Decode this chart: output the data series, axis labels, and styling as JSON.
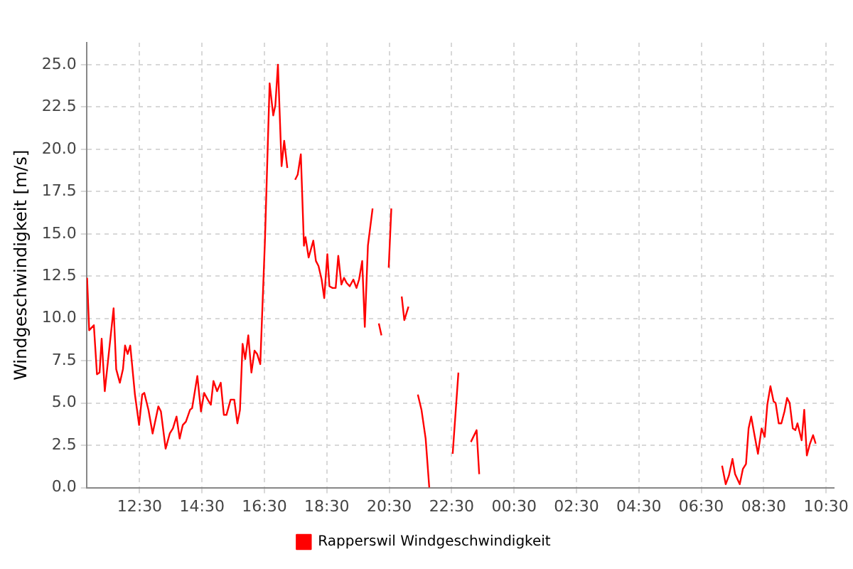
{
  "chart_data": {
    "type": "line",
    "ylabel": "Windgeschwindigkeit [m/s]",
    "x": [
      "--01-01T10:49",
      "--01-01T10:53",
      "--01-01T11:02",
      "--01-01T11:08",
      "--01-01T11:13",
      "--01-01T11:17",
      "--01-01T11:23",
      "--01-01T11:40",
      "--01-01T11:45",
      "--01-01T11:52",
      "--01-01T11:58",
      "--01-01T12:02",
      "--01-01T12:07",
      "--01-01T12:12",
      "--01-01T12:21",
      "--01-01T12:29",
      "--01-01T12:35",
      "--01-01T12:39",
      "--01-01T12:47",
      "--01-01T12:55",
      "--01-01T13:06",
      "--01-01T13:11",
      "--01-01T13:20",
      "--01-01T13:28",
      "--01-01T13:34",
      "--01-01T13:41",
      "--01-01T13:47",
      "--01-01T13:53",
      "--01-01T13:59",
      "--01-01T14:07",
      "--01-01T14:11",
      "--01-01T14:21",
      "--01-01T14:28",
      "--01-01T14:34",
      "--01-01T14:41",
      "--01-01T14:47",
      "--01-01T14:52",
      "--01-01T14:59",
      "--01-01T15:06",
      "--01-01T15:12",
      "--01-01T15:17",
      "--01-01T15:25",
      "--01-01T15:32",
      "--01-01T15:38",
      "--01-01T15:43",
      "--01-01T15:48",
      "--01-01T15:53",
      "--01-01T15:59",
      "--01-01T16:05",
      "--01-01T16:11",
      "--01-01T16:16",
      "--01-01T16:22",
      "--01-01T16:31",
      "--01-01T16:40",
      "--01-01T16:47",
      "--01-01T16:51",
      "--01-01T16:56",
      "--01-01T17:03",
      "--01-01T17:08",
      "--01-01T17:14",
      "--01-01T17:21",
      "--01-01T17:29",
      "--01-01T17:34",
      "--01-01T17:40",
      "--01-01T17:46",
      "--01-01T17:49",
      "--01-01T17:55",
      "--01-01T18:04",
      "--01-01T18:09",
      "--01-01T18:14",
      "--01-01T18:20",
      "--01-01T18:25",
      "--01-01T18:31",
      "--01-01T18:35",
      "--01-01T18:41",
      "--01-01T18:47",
      "--01-01T18:52",
      "--01-01T18:58",
      "--01-01T19:03",
      "--01-01T19:08",
      "--01-01T19:14",
      "--01-01T19:21",
      "--01-01T19:27",
      "--01-01T19:32",
      "--01-01T19:38",
      "--01-01T19:43",
      "--01-01T19:49",
      "--01-01T19:58",
      "--01-01T20:03",
      "--01-01T20:10",
      "--01-01T20:15",
      "--01-01T20:21",
      "--01-01T20:29",
      "--01-01T20:34",
      "--01-01T20:42",
      "--01-01T20:54",
      "--01-01T20:59",
      "--01-01T21:07",
      "--01-01T21:18",
      "--01-01T21:25",
      "--01-01T21:32",
      "--01-01T21:40",
      "--01-01T21:47",
      "--01-01T22:12",
      "--01-01T22:32",
      "--01-01T22:43",
      "--01-01T22:54",
      "--01-01T23:07",
      "--01-01T23:18",
      "--01-01T23:23",
      "--01-02T03:00",
      "--01-02T07:10",
      "--01-02T07:17",
      "--01-02T07:23",
      "--01-02T07:30",
      "--01-02T07:35",
      "--01-02T07:44",
      "--01-02T07:50",
      "--01-02T07:56",
      "--01-02T08:01",
      "--01-02T08:06",
      "--01-02T08:13",
      "--01-02T08:19",
      "--01-02T08:26",
      "--01-02T08:32",
      "--01-02T08:37",
      "--01-02T08:43",
      "--01-02T08:49",
      "--01-02T08:53",
      "--01-02T08:59",
      "--01-02T09:04",
      "--01-02T09:10",
      "--01-02T09:15",
      "--01-02T09:20",
      "--01-02T09:26",
      "--01-02T09:31",
      "--01-02T09:35",
      "--01-02T09:43",
      "--01-02T09:48",
      "--01-02T09:53",
      "--01-02T09:59",
      "--01-02T10:05",
      "--01-02T10:10"
    ],
    "series": [
      {
        "name": "Rapperswil Windgeschwindigkeit",
        "color": "#ff0000",
        "values": [
          12.4,
          9.3,
          9.6,
          6.7,
          6.8,
          8.8,
          5.7,
          10.6,
          7.0,
          6.2,
          7.0,
          8.4,
          7.9,
          8.4,
          5.5,
          3.7,
          5.5,
          5.6,
          4.6,
          3.2,
          4.8,
          4.5,
          2.3,
          3.2,
          3.5,
          4.2,
          2.9,
          3.7,
          3.9,
          4.6,
          4.7,
          6.6,
          4.5,
          5.6,
          5.2,
          4.9,
          6.3,
          5.7,
          6.2,
          4.3,
          4.3,
          5.2,
          5.2,
          3.8,
          4.6,
          8.5,
          7.6,
          9.0,
          6.8,
          8.1,
          7.9,
          7.3,
          14.6,
          23.9,
          22.0,
          22.6,
          25.0,
          19.0,
          20.5,
          18.9,
          null,
          18.2,
          18.5,
          19.7,
          14.3,
          14.8,
          13.6,
          14.6,
          13.4,
          13.1,
          12.3,
          11.2,
          13.8,
          11.9,
          11.8,
          11.8,
          13.7,
          12.0,
          12.4,
          12.1,
          11.9,
          12.3,
          11.8,
          12.3,
          13.4,
          9.5,
          14.3,
          16.5,
          null,
          9.7,
          9.0,
          null,
          13.0,
          16.5,
          null,
          11.3,
          9.9,
          10.7,
          null,
          5.5,
          4.6,
          2.9,
          0.0,
          null,
          2.0,
          6.8,
          null,
          2.7,
          3.4,
          0.8,
          null,
          1.3,
          0.2,
          0.7,
          1.7,
          0.8,
          0.2,
          1.1,
          1.4,
          3.5,
          4.2,
          3.0,
          2.0,
          3.5,
          3.0,
          4.9,
          6.0,
          5.1,
          5.0,
          3.8,
          3.8,
          4.5,
          5.3,
          5.0,
          3.5,
          3.4,
          3.8,
          2.8,
          4.6,
          1.9,
          2.6,
          3.1,
          2.6
        ]
      }
    ],
    "xlim": [
      "--01-01T10:48",
      "--01-02T10:45"
    ],
    "xticks": [
      {
        "value": "--01-01T12:30",
        "label": "12:30"
      },
      {
        "value": "--01-01T14:30",
        "label": "14:30"
      },
      {
        "value": "--01-01T16:30",
        "label": "16:30"
      },
      {
        "value": "--01-01T18:30",
        "label": "18:30"
      },
      {
        "value": "--01-01T20:30",
        "label": "20:30"
      },
      {
        "value": "--01-01T22:30",
        "label": "22:30"
      },
      {
        "value": "--01-02T00:30",
        "label": "00:30"
      },
      {
        "value": "--01-02T02:30",
        "label": "02:30"
      },
      {
        "value": "--01-02T04:30",
        "label": "04:30"
      },
      {
        "value": "--01-02T06:30",
        "label": "06:30"
      },
      {
        "value": "--01-02T08:30",
        "label": "08:30"
      },
      {
        "value": "--01-02T10:30",
        "label": "10:30"
      }
    ],
    "ylim": [
      0,
      26.3
    ],
    "yticks": [
      {
        "value": 0,
        "label": "0.0"
      },
      {
        "value": 2.5,
        "label": "2.5"
      },
      {
        "value": 5,
        "label": "5.0"
      },
      {
        "value": 7.5,
        "label": "7.5"
      },
      {
        "value": 10,
        "label": "10.0"
      },
      {
        "value": 12.5,
        "label": "12.5"
      },
      {
        "value": 15,
        "label": "15.0"
      },
      {
        "value": 17.5,
        "label": "17.5"
      },
      {
        "value": 20,
        "label": "20.0"
      },
      {
        "value": 22.5,
        "label": "22.5"
      },
      {
        "value": 25,
        "label": "25.0"
      }
    ],
    "grid": true,
    "legend": "bottom",
    "marker": "none",
    "line_style": "solid"
  }
}
